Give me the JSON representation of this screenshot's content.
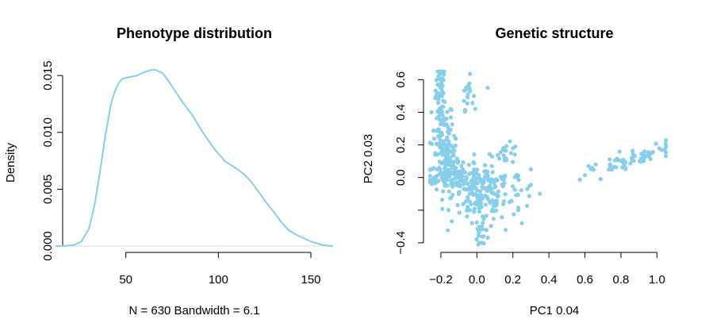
{
  "chart_data": [
    {
      "type": "line",
      "title": "Phenotype distribution",
      "xlabel": "N = 630   Bandwidth = 6.1",
      "ylabel": "Density",
      "xlim": [
        12,
        162
      ],
      "ylim": [
        0,
        0.0155
      ],
      "x_ticks": [
        50,
        100,
        150
      ],
      "x_tick_labels": [
        "50",
        "100",
        "150"
      ],
      "y_ticks": [
        0,
        0.005,
        0.01,
        0.015
      ],
      "y_tick_labels": [
        "0.000",
        "0.005",
        "0.010",
        "0.015"
      ],
      "color": "#87ceeb",
      "grid": false,
      "baseline": 0,
      "series": [
        {
          "x": [
            12,
            18,
            22,
            26,
            30,
            33,
            36,
            39,
            42,
            44,
            46,
            48,
            50,
            53,
            56,
            60,
            64,
            66,
            70,
            74,
            80,
            86,
            92,
            98,
            104,
            110,
            114,
            118,
            122,
            126,
            130,
            134,
            138,
            142,
            146,
            150,
            154,
            158,
            162
          ],
          "y": [
            0,
            3e-05,
            0.0001,
            0.0004,
            0.0015,
            0.0035,
            0.0065,
            0.0098,
            0.0125,
            0.0136,
            0.0143,
            0.0147,
            0.0148,
            0.0149,
            0.015,
            0.0153,
            0.0155,
            0.0155,
            0.0152,
            0.0143,
            0.0128,
            0.0115,
            0.0099,
            0.0085,
            0.0074,
            0.0068,
            0.0063,
            0.0056,
            0.0047,
            0.0038,
            0.003,
            0.0021,
            0.0014,
            0.001,
            0.0007,
            0.0004,
            0.0002,
            5e-05,
            0
          ]
        }
      ]
    },
    {
      "type": "scatter",
      "title": "Genetic structure",
      "xlabel": "PC1  0.04",
      "ylabel": "PC2  0.03",
      "xlim": [
        -0.27,
        1.06
      ],
      "ylim": [
        -0.42,
        0.66
      ],
      "x_ticks": [
        -0.2,
        0,
        0.2,
        0.4,
        0.6,
        0.8,
        1
      ],
      "x_tick_labels": [
        "−0.2",
        "0.0",
        "0.2",
        "0.4",
        "0.6",
        "0.8",
        "1.0"
      ],
      "y_ticks": [
        -0.4,
        -0.2,
        0,
        0.2,
        0.4,
        0.6
      ],
      "y_tick_labels": [
        "−0.4",
        "",
        "0.0",
        "0.2",
        "0.4",
        "0.6"
      ],
      "color": "#87ceeb",
      "grid": false,
      "clusters": [
        {
          "cx": -0.2,
          "cy": 0.54,
          "sx": 0.015,
          "sy": 0.1,
          "n": 40
        },
        {
          "cx": -0.19,
          "cy": 0.3,
          "sx": 0.03,
          "sy": 0.08,
          "n": 50
        },
        {
          "cx": -0.17,
          "cy": 0.12,
          "sx": 0.035,
          "sy": 0.08,
          "n": 90
        },
        {
          "cx": -0.05,
          "cy": 0.52,
          "sx": 0.015,
          "sy": 0.05,
          "n": 20
        },
        {
          "cx": -0.1,
          "cy": 0.0,
          "sx": 0.09,
          "sy": 0.04,
          "n": 120
        },
        {
          "cx": 0.02,
          "cy": -0.12,
          "sx": 0.08,
          "sy": 0.08,
          "n": 130
        },
        {
          "cx": 0.03,
          "cy": -0.33,
          "sx": 0.02,
          "sy": 0.05,
          "n": 25
        },
        {
          "cx": 0.16,
          "cy": 0.15,
          "sx": 0.04,
          "sy": 0.03,
          "n": 20
        },
        {
          "cx": 0.2,
          "cy": -0.08,
          "sx": 0.07,
          "sy": 0.06,
          "n": 30
        },
        {
          "cx": 0.85,
          "cy": 0.1,
          "sx": 0.12,
          "sy": 0.025,
          "n": 60
        }
      ],
      "points": [
        {
          "x": 0.35,
          "y": -0.1
        },
        {
          "x": 0.3,
          "y": 0.05
        },
        {
          "x": 0.28,
          "y": -0.07
        },
        {
          "x": 0.62,
          "y": 0.07
        },
        {
          "x": 0.64,
          "y": 0.06
        },
        {
          "x": 0.66,
          "y": 0.08
        },
        {
          "x": 0.25,
          "y": -0.28
        },
        {
          "x": 0.23,
          "y": -0.2
        },
        {
          "x": -0.26,
          "y": -0.02
        },
        {
          "x": -0.25,
          "y": -0.04
        },
        {
          "x": 0.06,
          "y": 0.55
        },
        {
          "x": 0.2,
          "y": 0.18
        },
        {
          "x": 1.05,
          "y": 0.19
        },
        {
          "x": 1.04,
          "y": 0.17
        },
        {
          "x": 0.74,
          "y": 0.08
        }
      ]
    }
  ]
}
